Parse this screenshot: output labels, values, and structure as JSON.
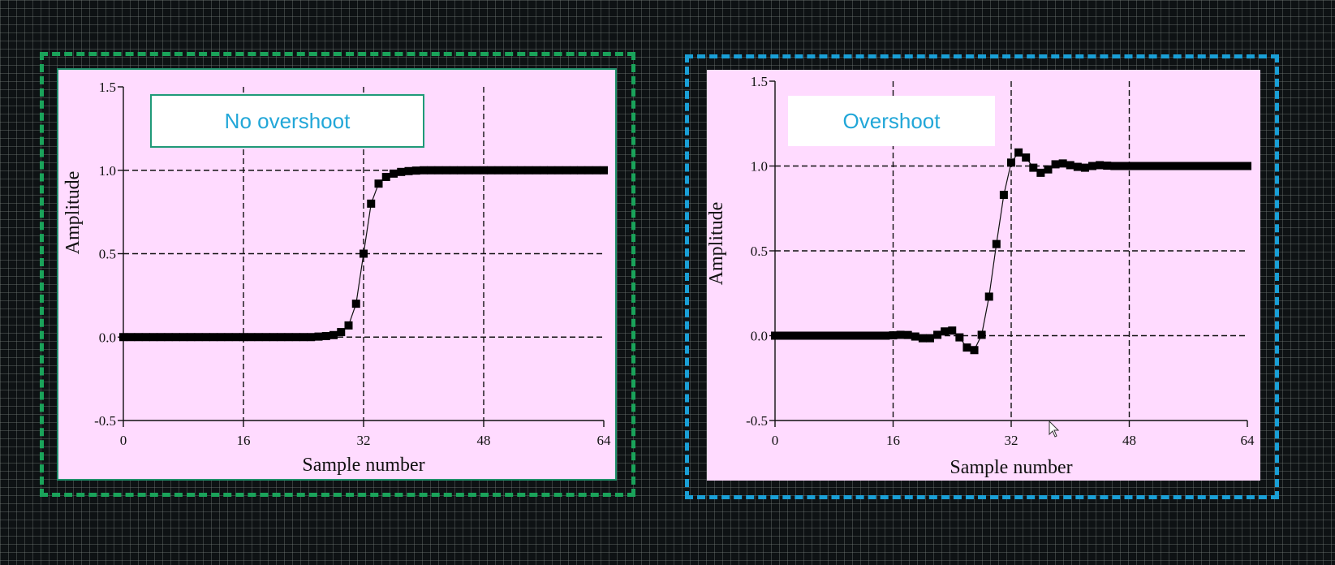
{
  "colors": {
    "left_frame": "#1aa35a",
    "right_frame": "#1a9fd6",
    "panel_bg": "#ffdbff",
    "badge_text": "#22a7d8"
  },
  "chart_data": [
    {
      "type": "line",
      "label": "No overshoot",
      "xlabel": "Sample number",
      "ylabel": "Amplitude",
      "xlim": [
        0,
        64
      ],
      "ylim": [
        -0.5,
        1.5
      ],
      "xticks": [
        0,
        16,
        32,
        48,
        64
      ],
      "yticks": [
        -0.5,
        0.0,
        0.5,
        1.0,
        1.5
      ],
      "ytick_labels": [
        "-0.5",
        "0.0",
        "0.5",
        "1.0",
        "1.5"
      ],
      "xtick_labels": [
        "0",
        "16",
        "32",
        "48",
        "64"
      ],
      "grid": true,
      "markers": "square",
      "series": [
        {
          "x": [
            0,
            1,
            2,
            3,
            4,
            5,
            6,
            7,
            8,
            9,
            10,
            11,
            12,
            13,
            14,
            15,
            16,
            17,
            18,
            19,
            20,
            21,
            22,
            23,
            24,
            25,
            26,
            27,
            28,
            29,
            30,
            31,
            32,
            33,
            34,
            35,
            36,
            37,
            38,
            39,
            40,
            41,
            42,
            43,
            44,
            45,
            46,
            47,
            48,
            49,
            50,
            51,
            52,
            53,
            54,
            55,
            56,
            57,
            58,
            59,
            60,
            61,
            62,
            63,
            64
          ],
          "y": [
            0,
            0,
            0,
            0,
            0,
            0,
            0,
            0,
            0,
            0,
            0,
            0,
            0,
            0,
            0,
            0,
            0,
            0,
            0,
            0,
            0,
            0,
            0,
            0,
            0,
            0,
            0.003,
            0.006,
            0.012,
            0.03,
            0.07,
            0.2,
            0.5,
            0.8,
            0.92,
            0.96,
            0.98,
            0.99,
            0.995,
            0.998,
            1,
            1,
            1,
            1,
            1,
            1,
            1,
            1,
            1,
            1,
            1,
            1,
            1,
            1,
            1,
            1,
            1,
            1,
            1,
            1,
            1,
            1,
            1,
            1,
            1
          ]
        }
      ]
    },
    {
      "type": "line",
      "label": "Overshoot",
      "xlabel": "Sample number",
      "ylabel": "Amplitude",
      "xlim": [
        0,
        64
      ],
      "ylim": [
        -0.5,
        1.5
      ],
      "xticks": [
        0,
        16,
        32,
        48,
        64
      ],
      "yticks": [
        -0.5,
        0.0,
        0.5,
        1.0,
        1.5
      ],
      "ytick_labels": [
        "-0.5",
        "0.0",
        "0.5",
        "1.0",
        "1.5"
      ],
      "xtick_labels": [
        "0",
        "16",
        "32",
        "48",
        "64"
      ],
      "grid": true,
      "markers": "square",
      "series": [
        {
          "x": [
            0,
            1,
            2,
            3,
            4,
            5,
            6,
            7,
            8,
            9,
            10,
            11,
            12,
            13,
            14,
            15,
            16,
            17,
            18,
            19,
            20,
            21,
            22,
            23,
            24,
            25,
            26,
            27,
            28,
            29,
            30,
            31,
            32,
            33,
            34,
            35,
            36,
            37,
            38,
            39,
            40,
            41,
            42,
            43,
            44,
            45,
            46,
            47,
            48,
            49,
            50,
            51,
            52,
            53,
            54,
            55,
            56,
            57,
            58,
            59,
            60,
            61,
            62,
            63,
            64
          ],
          "y": [
            0,
            0,
            0,
            0,
            0,
            0,
            0,
            0,
            0,
            0,
            0,
            0,
            0,
            0,
            0,
            0,
            0.002,
            0.005,
            0.004,
            -0.005,
            -0.015,
            -0.015,
            0.005,
            0.025,
            0.03,
            -0.01,
            -0.07,
            -0.085,
            0.005,
            0.23,
            0.54,
            0.83,
            1.02,
            1.08,
            1.05,
            0.99,
            0.96,
            0.98,
            1.01,
            1.015,
            1.005,
            0.995,
            0.99,
            1,
            1.005,
            1.002,
            1,
            1,
            1,
            1,
            1,
            1,
            1,
            1,
            1,
            1,
            1,
            1,
            1,
            1,
            1,
            1,
            1,
            1,
            1
          ]
        }
      ]
    }
  ]
}
